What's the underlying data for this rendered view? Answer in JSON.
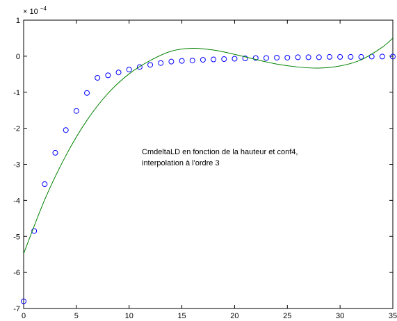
{
  "chart_data": {
    "type": "scatter",
    "title": "",
    "xlabel": "",
    "ylabel": "",
    "x_ticks": [
      "0",
      "5",
      "10",
      "15",
      "20",
      "25",
      "30",
      "35"
    ],
    "y_ticks": [
      "1",
      "0",
      "-1",
      "-2",
      "-3",
      "-4",
      "-5",
      "-6",
      "-7"
    ],
    "xlim": [
      0,
      35
    ],
    "ylim": [
      -7,
      1
    ],
    "y_exponent": "× 10",
    "y_exponent_power": "−4",
    "grid": false,
    "annotation": [
      "CmdeltaLD en fonction de la hauteur et conf4,",
      "interpolation à l'ordre 3"
    ],
    "series": [
      {
        "kind": "markers",
        "marker": "circle",
        "color": "#0000ff",
        "x": [
          0,
          1,
          2,
          3,
          4,
          5,
          6,
          7,
          8,
          9,
          10,
          11,
          12,
          13,
          14,
          15,
          16,
          17,
          18,
          19,
          20,
          21,
          22,
          23,
          24,
          25,
          26,
          27,
          28,
          29,
          30,
          31,
          32,
          33,
          34,
          35
        ],
        "y": [
          -6.8,
          -4.85,
          -3.55,
          -2.68,
          -2.05,
          -1.52,
          -1.02,
          -0.6,
          -0.53,
          -0.45,
          -0.37,
          -0.3,
          -0.24,
          -0.19,
          -0.15,
          -0.13,
          -0.12,
          -0.1,
          -0.09,
          -0.08,
          -0.07,
          -0.06,
          -0.05,
          -0.05,
          -0.04,
          -0.04,
          -0.03,
          -0.03,
          -0.03,
          -0.02,
          -0.02,
          -0.02,
          -0.02,
          -0.01,
          -0.01,
          -0.01
        ]
      },
      {
        "kind": "line",
        "color": "#008000",
        "x": [
          0,
          2,
          4,
          6,
          8,
          10,
          12,
          14,
          16,
          18,
          20,
          22,
          24,
          26,
          28,
          30,
          32,
          34,
          35
        ],
        "y": [
          -5.48,
          -3.98,
          -2.76,
          -1.78,
          -1.03,
          -0.49,
          -0.12,
          0.14,
          0.22,
          0.17,
          0.05,
          -0.09,
          -0.22,
          -0.3,
          -0.33,
          -0.27,
          -0.1,
          0.25,
          0.5
        ]
      }
    ]
  }
}
